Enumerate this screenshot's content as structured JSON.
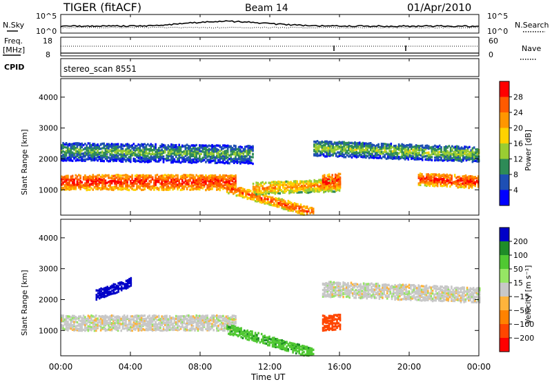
{
  "header": {
    "title": "TIGER (fitACF)",
    "beam": "Beam 14",
    "date": "01/Apr/2010"
  },
  "nsky_panel": {
    "left_label": "N.Sky",
    "right_label": "N.Search",
    "left_ticks": [
      "10^5",
      "10^0"
    ],
    "right_ticks": [
      "10^5",
      "10^0"
    ]
  },
  "freq_panel": {
    "label_line1": "Freq.",
    "label_line2": "[MHz]",
    "left_ticks": [
      "18",
      "8"
    ],
    "right_label": "Nave",
    "right_ticks": [
      "60",
      "0"
    ]
  },
  "cpid": {
    "label": "CPID",
    "value": "stereo_scan 8551"
  },
  "power_panel": {
    "ylabel": "Slant Range [km]",
    "yticks": [
      "4000",
      "3000",
      "2000",
      "1000"
    ],
    "colorbar_label": "Power [dB]",
    "colorbar_ticks": [
      "28",
      "24",
      "20",
      "16",
      "12",
      "8",
      "4"
    ],
    "colorbar_colors": [
      "#ff0000",
      "#ff5a00",
      "#ff9600",
      "#ffd200",
      "#9acd32",
      "#2e8b57",
      "#1e4fb4",
      "#0000ff"
    ]
  },
  "velocity_panel": {
    "ylabel": "Slant Range [km]",
    "yticks": [
      "4000",
      "3000",
      "2000",
      "1000"
    ],
    "colorbar_label": "Velocity [m s⁻¹]",
    "colorbar_ticks": [
      "200",
      "100",
      "50",
      "15",
      "−15",
      "−50",
      "−100",
      "−200"
    ],
    "colorbar_colors": [
      "#0000c8",
      "#1e8c28",
      "#50c832",
      "#96e664",
      "#c8c8c8",
      "#ffb43c",
      "#ff8200",
      "#ff4600",
      "#ff0000"
    ]
  },
  "xaxis": {
    "ticks": [
      "00:00",
      "04:00",
      "08:00",
      "12:00",
      "16:00",
      "20:00",
      "00:00"
    ],
    "label": "Time UT"
  },
  "chart_data": [
    {
      "type": "heatmap",
      "title": "TIGER (fitACF) Beam 14 01/Apr/2010",
      "quantity": "Power",
      "unit": "dB",
      "xlabel": "Time UT",
      "ylabel": "Slant Range [km]",
      "xlim_hours": [
        0,
        24
      ],
      "ylim_km": [
        180,
        4600
      ],
      "colorbar_range": [
        0,
        30
      ],
      "bands": [
        {
          "t_start": 0.0,
          "t_end": 10.0,
          "range_center_start": 1300,
          "range_center_end": 1300,
          "width_km": 500,
          "power_db": 28
        },
        {
          "t_start": 9.5,
          "t_end": 14.5,
          "range_center_start": 1100,
          "range_center_end": 300,
          "width_km": 300,
          "power_db": 26
        },
        {
          "t_start": 11.0,
          "t_end": 16.0,
          "range_center_start": 1100,
          "range_center_end": 1200,
          "width_km": 400,
          "power_db": 22
        },
        {
          "t_start": 15.0,
          "t_end": 16.0,
          "range_center_start": 1300,
          "range_center_end": 1350,
          "width_km": 500,
          "power_db": 28
        },
        {
          "t_start": 20.5,
          "t_end": 24.0,
          "range_center_start": 1400,
          "range_center_end": 1300,
          "width_km": 400,
          "power_db": 28
        },
        {
          "t_start": 0.0,
          "t_end": 11.0,
          "range_center_start": 2300,
          "range_center_end": 2200,
          "width_km": 600,
          "power_db": 12
        },
        {
          "t_start": 14.5,
          "t_end": 24.0,
          "range_center_start": 2400,
          "range_center_end": 2200,
          "width_km": 500,
          "power_db": 14
        }
      ]
    },
    {
      "type": "heatmap",
      "title": "TIGER (fitACF) Beam 14 01/Apr/2010",
      "quantity": "Velocity",
      "unit": "m s-1",
      "xlabel": "Time UT",
      "ylabel": "Slant Range [km]",
      "xlim_hours": [
        0,
        24
      ],
      "ylim_km": [
        180,
        4600
      ],
      "colorbar_range": [
        -200,
        200
      ],
      "bands": [
        {
          "t_start": 0.0,
          "t_end": 10.0,
          "range_center_start": 1300,
          "range_center_end": 1300,
          "width_km": 500,
          "velocity": 0
        },
        {
          "t_start": 9.5,
          "t_end": 14.5,
          "range_center_start": 1100,
          "range_center_end": 300,
          "width_km": 300,
          "velocity": 60
        },
        {
          "t_start": 15.0,
          "t_end": 16.0,
          "range_center_start": 1300,
          "range_center_end": 1350,
          "width_km": 500,
          "velocity": -120
        },
        {
          "t_start": 2.0,
          "t_end": 4.0,
          "range_center_start": 2200,
          "range_center_end": 2600,
          "width_km": 300,
          "velocity": 200
        },
        {
          "t_start": 15.0,
          "t_end": 24.0,
          "range_center_start": 2400,
          "range_center_end": 2200,
          "width_km": 500,
          "velocity": 0
        }
      ]
    }
  ]
}
